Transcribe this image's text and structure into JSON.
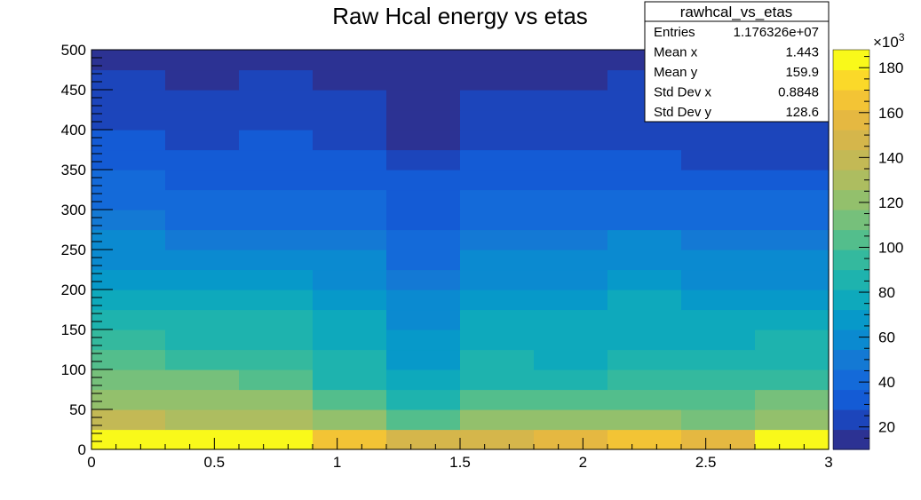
{
  "chart_data": {
    "type": "heatmap",
    "title": "Raw Hcal energy vs etas",
    "xlim": [
      0,
      3
    ],
    "ylim": [
      0,
      500
    ],
    "x_bin_edges": [
      0,
      0.3,
      0.6,
      0.9,
      1.2,
      1.5,
      1.8,
      2.1,
      2.4,
      2.7,
      3.0
    ],
    "y_bin_edges": [
      0,
      25,
      50,
      75,
      100,
      125,
      150,
      175,
      200,
      225,
      250,
      275,
      300,
      325,
      350,
      375,
      400,
      425,
      450,
      475,
      500
    ],
    "x_ticks": [
      "0",
      "0.5",
      "1",
      "1.5",
      "2",
      "2.5",
      "3"
    ],
    "x_tick_values": [
      0,
      0.5,
      1,
      1.5,
      2,
      2.5,
      3
    ],
    "y_ticks": [
      "0",
      "50",
      "100",
      "150",
      "200",
      "250",
      "300",
      "350",
      "400",
      "450",
      "500"
    ],
    "y_tick_values": [
      0,
      50,
      100,
      150,
      200,
      250,
      300,
      350,
      400,
      450,
      500
    ],
    "z_values_thousands": [
      [
        185,
        185,
        185,
        165,
        150,
        150,
        158,
        165,
        158,
        185
      ],
      [
        140,
        130,
        130,
        118,
        105,
        118,
        118,
        118,
        112,
        125
      ],
      [
        125,
        125,
        125,
        105,
        90,
        105,
        105,
        105,
        105,
        112
      ],
      [
        115,
        115,
        105,
        90,
        80,
        90,
        90,
        95,
        95,
        95
      ],
      [
        105,
        95,
        95,
        85,
        70,
        85,
        80,
        85,
        85,
        85
      ],
      [
        95,
        90,
        90,
        80,
        68,
        80,
        80,
        80,
        80,
        90
      ],
      [
        88,
        82,
        82,
        75,
        60,
        75,
        75,
        75,
        75,
        75
      ],
      [
        80,
        75,
        75,
        70,
        55,
        70,
        70,
        75,
        70,
        70
      ],
      [
        70,
        65,
        65,
        62,
        50,
        62,
        62,
        70,
        62,
        62
      ],
      [
        60,
        58,
        58,
        55,
        45,
        55,
        55,
        60,
        55,
        55
      ],
      [
        55,
        52,
        52,
        50,
        40,
        50,
        50,
        55,
        50,
        50
      ],
      [
        50,
        45,
        45,
        45,
        35,
        45,
        45,
        45,
        45,
        45
      ],
      [
        45,
        42,
        42,
        40,
        33,
        40,
        40,
        40,
        40,
        40
      ],
      [
        40,
        35,
        35,
        35,
        30,
        35,
        35,
        35,
        35,
        35
      ],
      [
        35,
        30,
        30,
        30,
        25,
        30,
        30,
        30,
        25,
        25
      ],
      [
        30,
        25,
        30,
        25,
        15,
        25,
        25,
        25,
        25,
        25
      ],
      [
        25,
        25,
        25,
        25,
        15,
        20,
        20,
        20,
        20,
        20
      ],
      [
        25,
        20,
        20,
        20,
        15,
        20,
        20,
        20,
        20,
        20
      ],
      [
        20,
        15,
        20,
        15,
        15,
        15,
        15,
        20,
        20,
        20
      ],
      [
        15,
        15,
        15,
        15,
        15,
        15,
        15,
        15,
        15,
        15
      ]
    ],
    "z_range_thousands": [
      10,
      188
    ],
    "colorbar": {
      "ticks": [
        "20",
        "40",
        "60",
        "80",
        "100",
        "120",
        "140",
        "160",
        "180"
      ],
      "tick_values": [
        20,
        40,
        60,
        80,
        100,
        120,
        140,
        160,
        180
      ],
      "exponent_label": "×10",
      "exponent_power": "3"
    },
    "palette": [
      "#2c3293",
      "#1c45bb",
      "#145bd5",
      "#146ad9",
      "#1479d4",
      "#0b8ad0",
      "#0799c9",
      "#0ea9bc",
      "#1eb3ae",
      "#34b99e",
      "#53be8c",
      "#76c07b",
      "#93c06c",
      "#adbd60",
      "#c3b955",
      "#d5b64b",
      "#e5b841",
      "#f3c435",
      "#fbd929",
      "#f9f91a"
    ],
    "stats": {
      "name": "rawhcal_vs_etas",
      "rows": [
        {
          "label": "Entries",
          "value": "1.176326e+07"
        },
        {
          "label": "Mean x",
          "value": "1.443"
        },
        {
          "label": "Mean y",
          "value": "159.9"
        },
        {
          "label": "Std Dev x",
          "value": "0.8848"
        },
        {
          "label": "Std Dev y",
          "value": "128.6"
        }
      ]
    }
  }
}
